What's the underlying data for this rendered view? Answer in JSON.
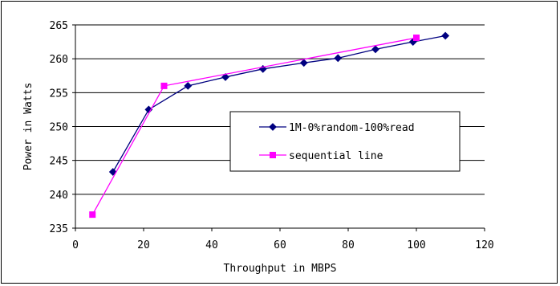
{
  "chart_data": {
    "type": "line",
    "title": "",
    "xlabel": "Throughput in MBPS",
    "ylabel": "Power in Watts",
    "xlim": [
      0,
      120
    ],
    "ylim": [
      235,
      265
    ],
    "xticks": [
      0,
      20,
      40,
      60,
      80,
      100,
      120
    ],
    "yticks": [
      235,
      240,
      245,
      250,
      255,
      260,
      265
    ],
    "grid": "horizontal",
    "legend_position": "center-right",
    "series": [
      {
        "name": "1M-0%random-100%read",
        "color": "#000080",
        "marker": "diamond",
        "x": [
          11,
          21.5,
          33,
          44,
          55,
          67,
          77,
          88,
          99,
          108.5
        ],
        "y": [
          243.3,
          252.5,
          256,
          257.3,
          258.5,
          259.4,
          260.1,
          261.4,
          262.5,
          263.4
        ]
      },
      {
        "name": "sequential line",
        "color": "#FF00FF",
        "marker": "square",
        "x": [
          5,
          26,
          100
        ],
        "y": [
          237,
          256,
          263.1
        ]
      }
    ]
  }
}
